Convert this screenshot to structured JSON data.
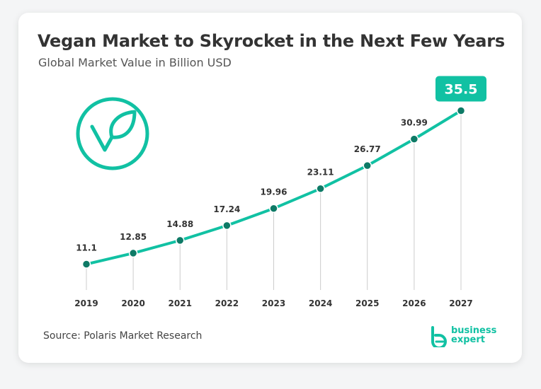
{
  "title": "Vegan Market to Skyrocket in the Next Few Years",
  "subtitle": "Global Market Value in Billion USD",
  "source": "Source: Polaris Market Research",
  "brand": {
    "line1": "business",
    "line2": "expert"
  },
  "colors": {
    "accent": "#11c1a3",
    "point": "#0e7a66",
    "text": "#333333",
    "grid": "#cccccc",
    "highlight_text": "#ffffff"
  },
  "icons": {
    "leaf": "leaf-circle-icon",
    "brand": "business-expert-logo-icon"
  },
  "chart_data": {
    "type": "line",
    "title": "Vegan Market to Skyrocket in the Next Few Years",
    "subtitle": "Global Market Value in Billion USD",
    "x": [
      "2019",
      "2020",
      "2021",
      "2022",
      "2023",
      "2024",
      "2025",
      "2026",
      "2027"
    ],
    "series": [
      {
        "values": [
          11.1,
          12.85,
          14.88,
          17.24,
          19.96,
          23.11,
          26.77,
          30.99,
          35.5
        ],
        "labels": [
          "11.1",
          "12.85",
          "14.88",
          "17.24",
          "19.96",
          "23.11",
          "26.77",
          "30.99",
          "35.5"
        ]
      }
    ],
    "highlight_index": 8,
    "ylim": [
      0,
      40
    ],
    "grid": "vertical drop lines",
    "legend": "none"
  }
}
